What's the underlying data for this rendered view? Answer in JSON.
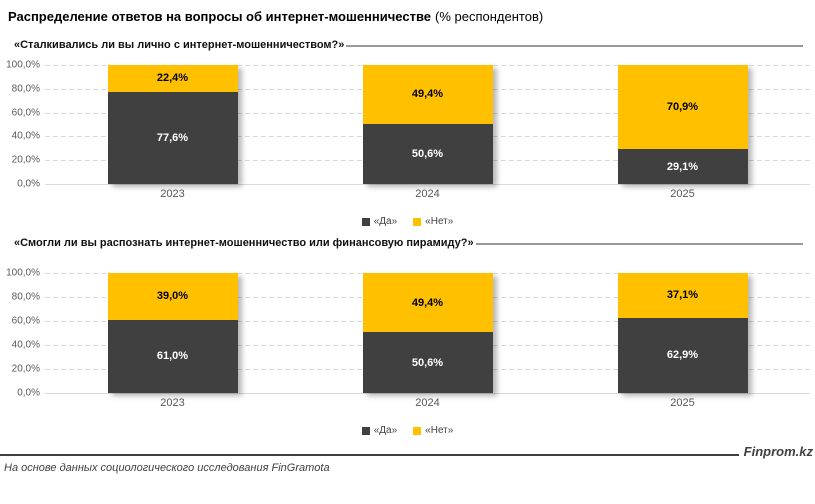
{
  "title": {
    "main": "Распределение ответов на вопросы об интернет-мошенничестве",
    "suffix": "(% респондентов)"
  },
  "footer": {
    "brand": "Finprom.kz",
    "source": "На основе данных социологического исследования FinGramota"
  },
  "colors": {
    "yes": "#404040",
    "no": "#FFC000",
    "grid": "#D9D9D9",
    "axis_text": "#595959"
  },
  "chart_data": [
    {
      "type": "bar",
      "stacked": true,
      "title": "«Сталкивались ли вы лично с интернет-мошенничеством?»",
      "categories": [
        "2023",
        "2024",
        "2025"
      ],
      "series": [
        {
          "name": "«Да»",
          "color": "#404040",
          "label_color": "#ffffff",
          "values": [
            77.6,
            50.6,
            29.1
          ],
          "labels": [
            "77,6%",
            "50,6%",
            "29,1%"
          ]
        },
        {
          "name": "«Нет»",
          "color": "#FFC000",
          "label_color": "#000000",
          "values": [
            22.4,
            49.4,
            70.9
          ],
          "labels": [
            "22,4%",
            "49,4%",
            "70,9%"
          ]
        }
      ],
      "y_ticks": [
        "100,0%",
        "80,0%",
        "60,0%",
        "40,0%",
        "20,0%",
        "0,0%"
      ],
      "ylim": [
        0,
        100
      ],
      "grid": "horizontal-dashed",
      "legend_position": "bottom"
    },
    {
      "type": "bar",
      "stacked": true,
      "title": "«Смогли ли вы распознать интернет-мошенничество или финансовую пирамиду?»",
      "categories": [
        "2023",
        "2024",
        "2025"
      ],
      "series": [
        {
          "name": "«Да»",
          "color": "#404040",
          "label_color": "#ffffff",
          "values": [
            61.0,
            50.6,
            62.9
          ],
          "labels": [
            "61,0%",
            "50,6%",
            "62,9%"
          ]
        },
        {
          "name": "«Нет»",
          "color": "#FFC000",
          "label_color": "#000000",
          "values": [
            39.0,
            49.4,
            37.1
          ],
          "labels": [
            "39,0%",
            "49,4%",
            "37,1%"
          ]
        }
      ],
      "y_ticks": [
        "100,0%",
        "80,0%",
        "60,0%",
        "40,0%",
        "20,0%",
        "0,0%"
      ],
      "ylim": [
        0,
        100
      ],
      "grid": "horizontal-dashed",
      "legend_position": "bottom"
    }
  ]
}
